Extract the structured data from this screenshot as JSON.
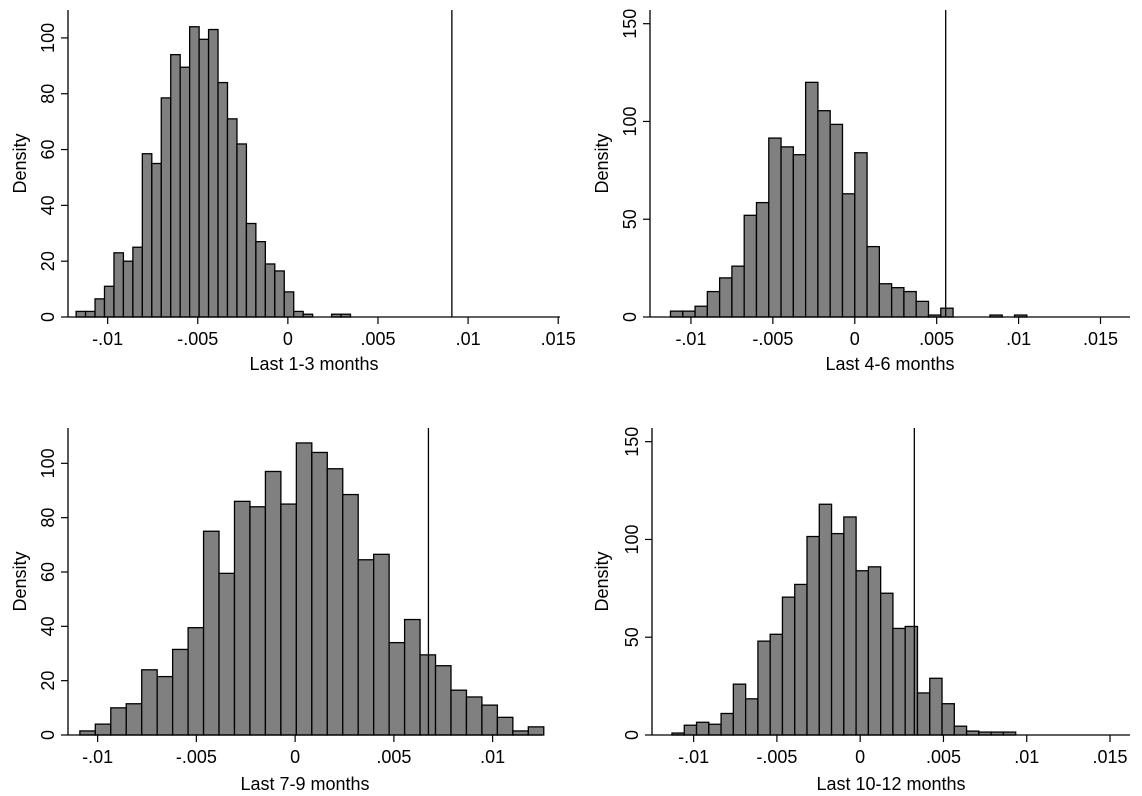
{
  "chart_data": [
    {
      "type": "bar",
      "xlabel": "Last 1-3 months",
      "ylabel": "Density",
      "xlim": [
        -0.0122,
        0.0151
      ],
      "ylim": [
        0,
        110
      ],
      "xticks": [
        -0.01,
        -0.005,
        0,
        0.005,
        0.01,
        0.015
      ],
      "xtick_labels": [
        "-.01",
        "-.005",
        "0",
        ".005",
        ".01",
        ".015"
      ],
      "yticks": [
        0,
        20,
        40,
        60,
        80,
        100
      ],
      "ytick_labels": [
        "0",
        "20",
        "40",
        "60",
        "80",
        "100"
      ],
      "bin_start": -0.01175,
      "bin_width": 0.000525,
      "values": [
        2,
        2,
        6.5,
        11,
        23,
        20,
        25,
        58.5,
        55,
        78.5,
        94,
        89.5,
        104,
        99.5,
        103,
        84,
        71,
        62,
        33.5,
        27,
        19,
        16.5,
        9,
        2,
        1,
        0,
        0,
        1,
        1
      ],
      "reference_x": 0.0091
    },
    {
      "type": "bar",
      "xlabel": "Last 4-6 months",
      "ylabel": "Density",
      "xlim": [
        -0.0125,
        0.0168
      ],
      "ylim": [
        0,
        157
      ],
      "xticks": [
        -0.01,
        -0.005,
        0,
        0.005,
        0.01,
        0.015
      ],
      "xtick_labels": [
        "-.01",
        "-.005",
        "0",
        ".005",
        ".01",
        ".015"
      ],
      "yticks": [
        0,
        50,
        100,
        150
      ],
      "ytick_labels": [
        "0",
        "50",
        "100",
        "150"
      ],
      "bin_start": -0.01125,
      "bin_width": 0.00075,
      "values": [
        3,
        3,
        5.5,
        13,
        20,
        26,
        52,
        58.5,
        91.5,
        87,
        83,
        120,
        105.5,
        98.5,
        63,
        84,
        36,
        17,
        15,
        13,
        8,
        1,
        4.5,
        0,
        0,
        0,
        1,
        0,
        1
      ],
      "reference_x": 0.00555
    },
    {
      "type": "bar",
      "xlabel": "Last 7-9 months",
      "ylabel": "Density",
      "xlim": [
        -0.0115,
        0.0125
      ],
      "ylim": [
        0,
        113
      ],
      "xticks": [
        -0.01,
        -0.005,
        0,
        0.005,
        0.01
      ],
      "xtick_labels": [
        "-.01",
        "-.005",
        "0",
        ".005",
        ".01"
      ],
      "yticks": [
        0,
        20,
        40,
        60,
        80,
        100
      ],
      "ytick_labels": [
        "0",
        "20",
        "40",
        "60",
        "80",
        "100"
      ],
      "bin_start": -0.0109,
      "bin_width": 0.000783,
      "values": [
        1.5,
        4,
        10,
        11.5,
        24,
        21.5,
        31.5,
        39.5,
        75,
        59.5,
        86,
        84,
        97,
        85,
        107.5,
        104,
        98,
        88.5,
        64.5,
        66.5,
        34,
        42.5,
        29.5,
        25.5,
        16.5,
        14,
        11,
        6.5,
        1.5,
        3
      ],
      "reference_x": 0.00675
    },
    {
      "type": "bar",
      "xlabel": "Last 10-12 months",
      "ylabel": "Density",
      "xlim": [
        -0.0125,
        0.0162
      ],
      "ylim": [
        0,
        157
      ],
      "xticks": [
        -0.01,
        -0.005,
        0,
        0.005,
        0.01,
        0.015
      ],
      "xtick_labels": [
        "-.01",
        "-.005",
        "0",
        ".005",
        ".01",
        ".015"
      ],
      "yticks": [
        0,
        50,
        100,
        150
      ],
      "ytick_labels": [
        "0",
        "50",
        "100",
        "150"
      ],
      "bin_start": -0.0113,
      "bin_width": 0.000737,
      "values": [
        1,
        5,
        6.5,
        5.5,
        11,
        26,
        18.5,
        48,
        51.5,
        70.5,
        77,
        101.5,
        118,
        103,
        111.5,
        84,
        86,
        72.5,
        54.5,
        55.5,
        21.5,
        29,
        16,
        4.5,
        2,
        1.5,
        1.5,
        1.5
      ],
      "reference_x": 0.00325
    }
  ]
}
